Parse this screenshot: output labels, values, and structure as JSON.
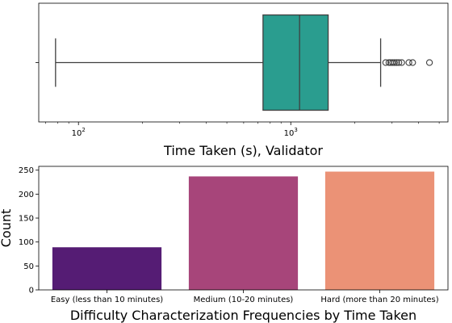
{
  "chart_data": [
    {
      "type": "box",
      "orientation": "horizontal",
      "xlabel": "Time Taken (s), Validator",
      "xscale": "log",
      "xlim": [
        65,
        5500
      ],
      "xticks": [
        {
          "value": 100,
          "base": "10",
          "exp": "2"
        },
        {
          "value": 1000,
          "base": "10",
          "exp": "3"
        }
      ],
      "stats": {
        "whisker_low": 78,
        "q1": 740,
        "median": 1100,
        "q3": 1500,
        "whisker_high": 2650
      },
      "outliers": [
        2800,
        2900,
        2960,
        3020,
        3080,
        3150,
        3230,
        3330,
        3600,
        3750,
        4500
      ],
      "box_color": "#2a9d8f",
      "edge_color": "#3f3f3f"
    },
    {
      "type": "bar",
      "categories": [
        "Easy (less than 10 minutes)",
        "Medium (10-20 minutes)",
        "Hard (more than 20 minutes)"
      ],
      "values": [
        89,
        237,
        247
      ],
      "colors": [
        "#551c74",
        "#a7457a",
        "#eb9276"
      ],
      "xlabel": "Difficulty Characterization Frequencies by Time Taken",
      "ylabel": "Count",
      "ylim": [
        0,
        258
      ],
      "yticks": [
        0,
        50,
        100,
        150,
        200,
        250
      ]
    }
  ]
}
